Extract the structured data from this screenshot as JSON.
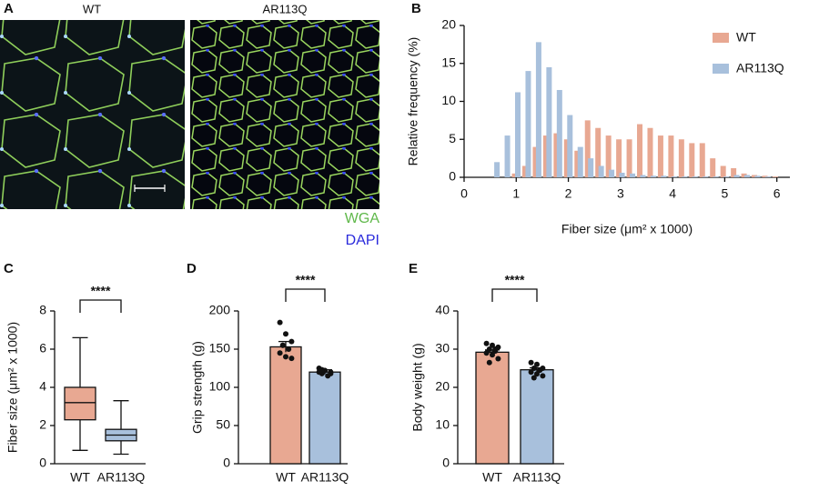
{
  "panel_a": {
    "label": "A",
    "titles": [
      "WT",
      "AR113Q"
    ],
    "stains": [
      "WGA",
      "DAPI"
    ]
  },
  "chart_data": [
    {
      "panel": "B",
      "type": "bar",
      "xlabel": "Fiber size (μm² x 1000)",
      "ylabel": "Relative frequency (%)",
      "x": [
        0.7,
        0.9,
        1.1,
        1.3,
        1.5,
        1.7,
        1.9,
        2.1,
        2.3,
        2.5,
        2.7,
        2.9,
        3.1,
        3.3,
        3.5,
        3.7,
        3.9,
        4.1,
        4.3,
        4.5,
        4.7,
        4.9,
        5.1,
        5.3,
        5.5,
        5.7,
        5.9
      ],
      "series": [
        {
          "name": "WT",
          "color": "#e8a892",
          "values": [
            0,
            0.5,
            1.5,
            4,
            5.5,
            5.8,
            5,
            3.5,
            7.5,
            6.5,
            5.5,
            5,
            5,
            7,
            6.5,
            5.5,
            5.5,
            5,
            4.5,
            4.5,
            2.5,
            1.5,
            1.2,
            0.5,
            0.3,
            0.2,
            0.1
          ]
        },
        {
          "name": "AR113Q",
          "color": "#a8c0dc",
          "values": [
            2,
            5.5,
            11.2,
            14,
            17.8,
            14.5,
            11.5,
            8.2,
            4,
            2.5,
            1.5,
            1,
            0.6,
            0.5,
            0.3,
            0.2,
            0.2,
            0.1,
            0.1,
            0.1,
            0.1,
            0.1,
            0.1,
            0.3,
            0.3,
            0.2,
            0.1
          ]
        }
      ],
      "xlim": [
        0,
        6.25
      ],
      "xticks": [
        0,
        1,
        2,
        3,
        4,
        5,
        6
      ],
      "ylim": [
        0,
        20
      ],
      "yticks": [
        0,
        5,
        10,
        15,
        20
      ],
      "legend": "upper right"
    },
    {
      "panel": "C",
      "type": "box",
      "ylabel": "Fiber size (μm² x 1000)",
      "categories": [
        "WT",
        "AR113Q"
      ],
      "colors": [
        "#e8a892",
        "#a8c0dc"
      ],
      "boxes": [
        {
          "min": 0.7,
          "q1": 2.3,
          "median": 3.2,
          "q3": 4.0,
          "max": 6.6
        },
        {
          "min": 0.5,
          "q1": 1.2,
          "median": 1.5,
          "q3": 1.8,
          "max": 3.3
        }
      ],
      "ylim": [
        0,
        8
      ],
      "yticks": [
        0,
        2,
        4,
        6,
        8
      ],
      "significance": "****"
    },
    {
      "panel": "D",
      "type": "dotbar",
      "ylabel": "Grip strength (g)",
      "categories": [
        "WT",
        "AR113Q"
      ],
      "colors": [
        "#e8a892",
        "#a8c0dc"
      ],
      "values": [
        153,
        120
      ],
      "errors": [
        7,
        3
      ],
      "points": [
        [
          185,
          170,
          160,
          155,
          150,
          145,
          140,
          138,
          155
        ],
        [
          125,
          122,
          120,
          118,
          115,
          120,
          122,
          118,
          123
        ]
      ],
      "ylim": [
        0,
        200
      ],
      "yticks": [
        0,
        50,
        100,
        150,
        200
      ],
      "significance": "****"
    },
    {
      "panel": "E",
      "type": "dotbar",
      "ylabel": "Body weight (g)",
      "categories": [
        "WT",
        "AR113Q"
      ],
      "colors": [
        "#e8a892",
        "#a8c0dc"
      ],
      "values": [
        29.2,
        24.6
      ],
      "errors": [
        0.6,
        0.5
      ],
      "points": [
        [
          31.5,
          31,
          30.5,
          30,
          29.5,
          29,
          28.5,
          27.5,
          26.5,
          30
        ],
        [
          26.5,
          26,
          25,
          25,
          24.5,
          24,
          23.5,
          23,
          22.5
        ]
      ],
      "ylim": [
        0,
        40
      ],
      "yticks": [
        0,
        10,
        20,
        30,
        40
      ],
      "significance": "****"
    }
  ]
}
